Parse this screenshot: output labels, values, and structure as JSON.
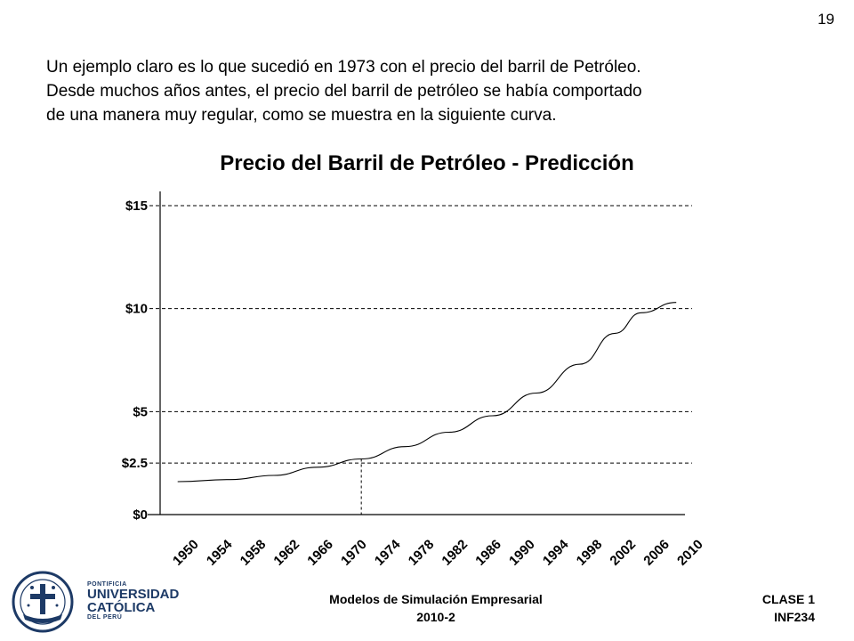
{
  "slide": {
    "page_number": "19",
    "intro_lines": [
      "Un ejemplo claro es lo que sucedió en 1973 con el precio del barril de Petróleo.",
      "Desde muchos años antes, el precio del barril de petróleo se había comportado",
      "de una manera muy regular, como se muestra en la siguiente curva."
    ]
  },
  "chart_data": {
    "type": "line",
    "title": "Precio del Barril de Petróleo - Predicción",
    "xlabel": "",
    "ylabel": "",
    "y_ticks": [
      {
        "value": 0,
        "label": "$0"
      },
      {
        "value": 2.5,
        "label": "$2.5"
      },
      {
        "value": 5,
        "label": "$5"
      },
      {
        "value": 10,
        "label": "$10"
      },
      {
        "value": 15,
        "label": "$15"
      }
    ],
    "x_ticks": [
      "1950",
      "1954",
      "1958",
      "1962",
      "1966",
      "1970",
      "1974",
      "1978",
      "1982",
      "1986",
      "1990",
      "1994",
      "1998",
      "2002",
      "2006",
      "2010"
    ],
    "xlim": [
      1950,
      2010
    ],
    "ylim": [
      0,
      15
    ],
    "grid_lines_at": [
      2.5,
      5,
      10,
      15
    ],
    "grid": "dashed",
    "highlight": {
      "x": 1973,
      "y": 2.7
    },
    "series": [
      {
        "x": [
          1952,
          1958,
          1963,
          1968,
          1973,
          1978,
          1983,
          1988,
          1993,
          1998,
          2002,
          2005,
          2009
        ],
        "y": [
          1.6,
          1.7,
          1.9,
          2.3,
          2.7,
          3.3,
          4.0,
          4.8,
          5.9,
          7.3,
          8.8,
          9.8,
          10.3
        ]
      }
    ]
  },
  "footer": {
    "course_line1": "Modelos de Simulación Empresarial",
    "course_line2": "2010-2",
    "class_line1": "CLASE 1",
    "class_line2": "INF234"
  },
  "logo": {
    "line1": "PONTIFICIA",
    "line2": "UNIVERSIDAD",
    "line3": "CATÓLICA",
    "line4": "DEL PERÚ"
  }
}
